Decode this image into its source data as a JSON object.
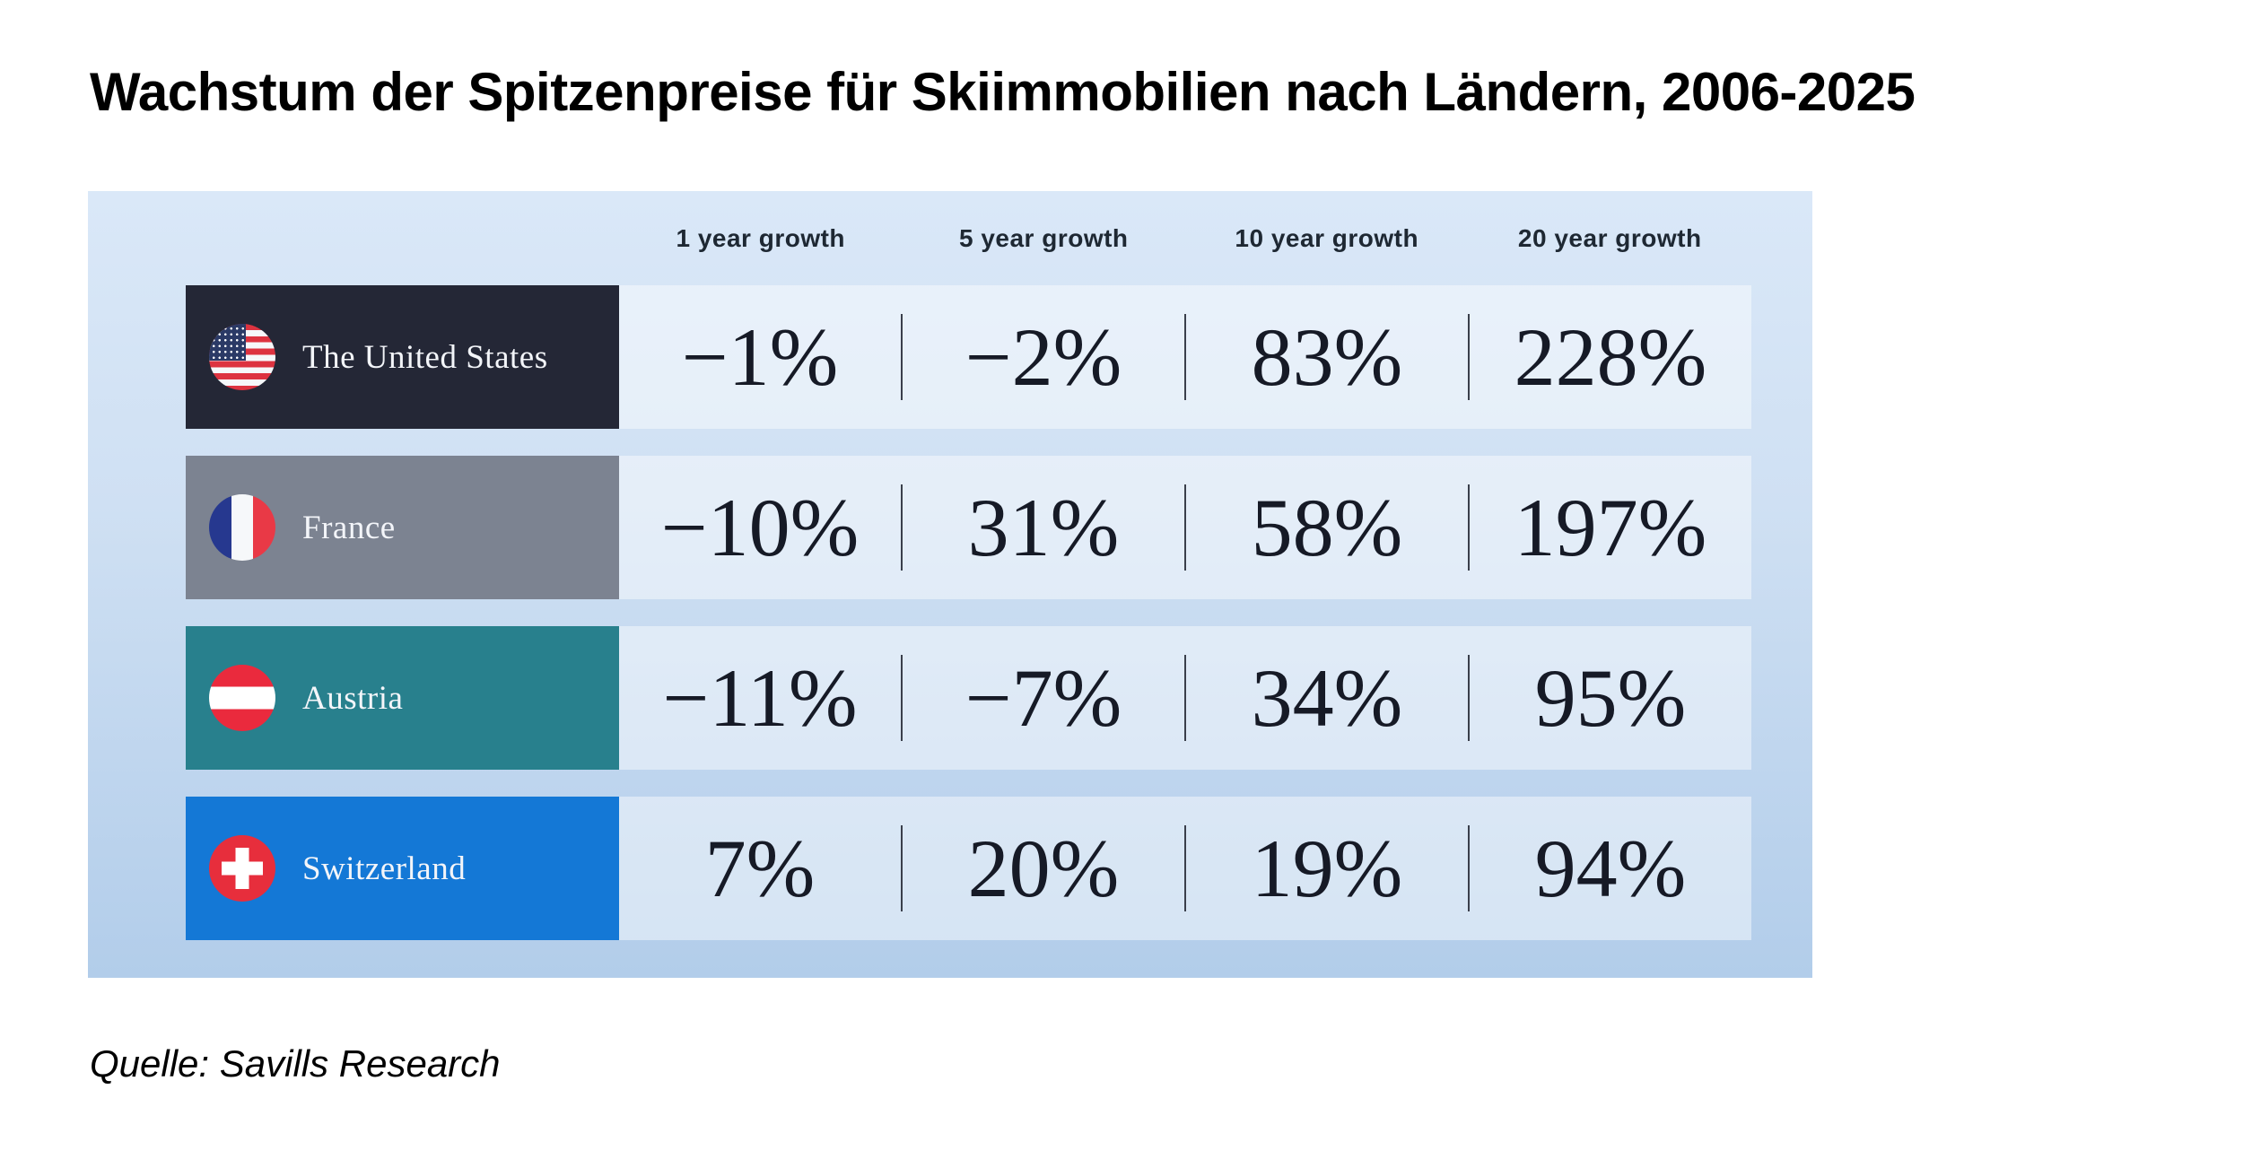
{
  "title": "Wachstum der Spitzenpreise für Skiimmobilien nach Ländern, 2006-2025",
  "source": "Quelle: Savills Research",
  "colors": {
    "panel_top": "#dae8f8",
    "panel_bottom": "#b2cdea",
    "header_text": "#1e2833",
    "value_text": "#161a26",
    "divider": "#3a3f4b",
    "row_us": "#242736",
    "row_france": "#7c8391",
    "row_austria": "#28808d",
    "row_switzerland": "#1478d6"
  },
  "table": {
    "columns": [
      "1 year growth",
      "5 year growth",
      "10 year growth",
      "20 year growth"
    ],
    "rows": [
      {
        "country": "The United States",
        "flag": "us-flag-icon",
        "color": "#242736",
        "values": [
          "−1%",
          "−2%",
          "83%",
          "228%"
        ]
      },
      {
        "country": "France",
        "flag": "france-flag-icon",
        "color": "#7c8391",
        "values": [
          "−10%",
          "31%",
          "58%",
          "197%"
        ]
      },
      {
        "country": "Austria",
        "flag": "austria-flag-icon",
        "color": "#28808d",
        "values": [
          "−11%",
          "−7%",
          "34%",
          "95%"
        ]
      },
      {
        "country": "Switzerland",
        "flag": "switzerland-flag-icon",
        "color": "#1478d6",
        "values": [
          "7%",
          "20%",
          "19%",
          "94%"
        ]
      }
    ]
  },
  "chart_data": {
    "type": "table",
    "title": "Wachstum der Spitzenpreise für Skiimmobilien nach Ländern, 2006-2025",
    "categories": [
      "The United States",
      "France",
      "Austria",
      "Switzerland"
    ],
    "series": [
      {
        "name": "1 year growth",
        "values": [
          -1,
          -10,
          -11,
          7
        ]
      },
      {
        "name": "5 year growth",
        "values": [
          -2,
          31,
          -7,
          20
        ]
      },
      {
        "name": "10 year growth",
        "values": [
          83,
          58,
          34,
          19
        ]
      },
      {
        "name": "20 year growth",
        "values": [
          228,
          197,
          95,
          94
        ]
      }
    ],
    "unit": "%",
    "source": "Quelle: Savills Research"
  }
}
